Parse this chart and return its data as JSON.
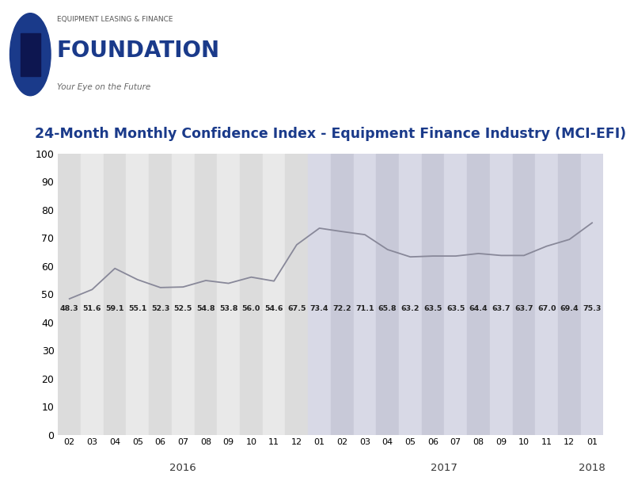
{
  "title": "24-Month Monthly Confidence Index - Equipment Finance Industry (MCI-EFI)",
  "values": [
    48.3,
    51.6,
    59.1,
    55.1,
    52.3,
    52.5,
    54.8,
    53.8,
    56.0,
    54.6,
    67.5,
    73.4,
    72.2,
    71.1,
    65.8,
    63.2,
    63.5,
    63.5,
    64.4,
    63.7,
    63.7,
    67.0,
    69.4,
    75.3
  ],
  "x_labels": [
    "02",
    "03",
    "04",
    "05",
    "06",
    "07",
    "08",
    "09",
    "10",
    "11",
    "12",
    "01",
    "02",
    "03",
    "04",
    "05",
    "06",
    "07",
    "08",
    "09",
    "10",
    "11",
    "12",
    "01"
  ],
  "ylim": [
    0,
    100
  ],
  "yticks": [
    0,
    10,
    20,
    30,
    40,
    50,
    60,
    70,
    80,
    90,
    100
  ],
  "line_color": "#888899",
  "line_width": 1.3,
  "stripe_2016_even": "#dcdcdc",
  "stripe_2016_odd": "#e9e9e9",
  "stripe_2017_even": "#c8c9d8",
  "stripe_2017_odd": "#d8d9e6",
  "title_color": "#1a3a8a",
  "title_fontsize": 12.5,
  "background_color": "#ffffff",
  "logo_text_small": "EQUIPMENT LEASING & FINANCE",
  "logo_text_large": "FOUNDATION",
  "logo_subtext": "Your Eye on the Future",
  "logo_circle_color": "#1a3a8a",
  "tick_label_fontsize": 8,
  "value_label_fontsize": 6.8,
  "year_label_fontsize": 9.5,
  "value_label_color": "#222222",
  "ytick_fontsize": 9
}
